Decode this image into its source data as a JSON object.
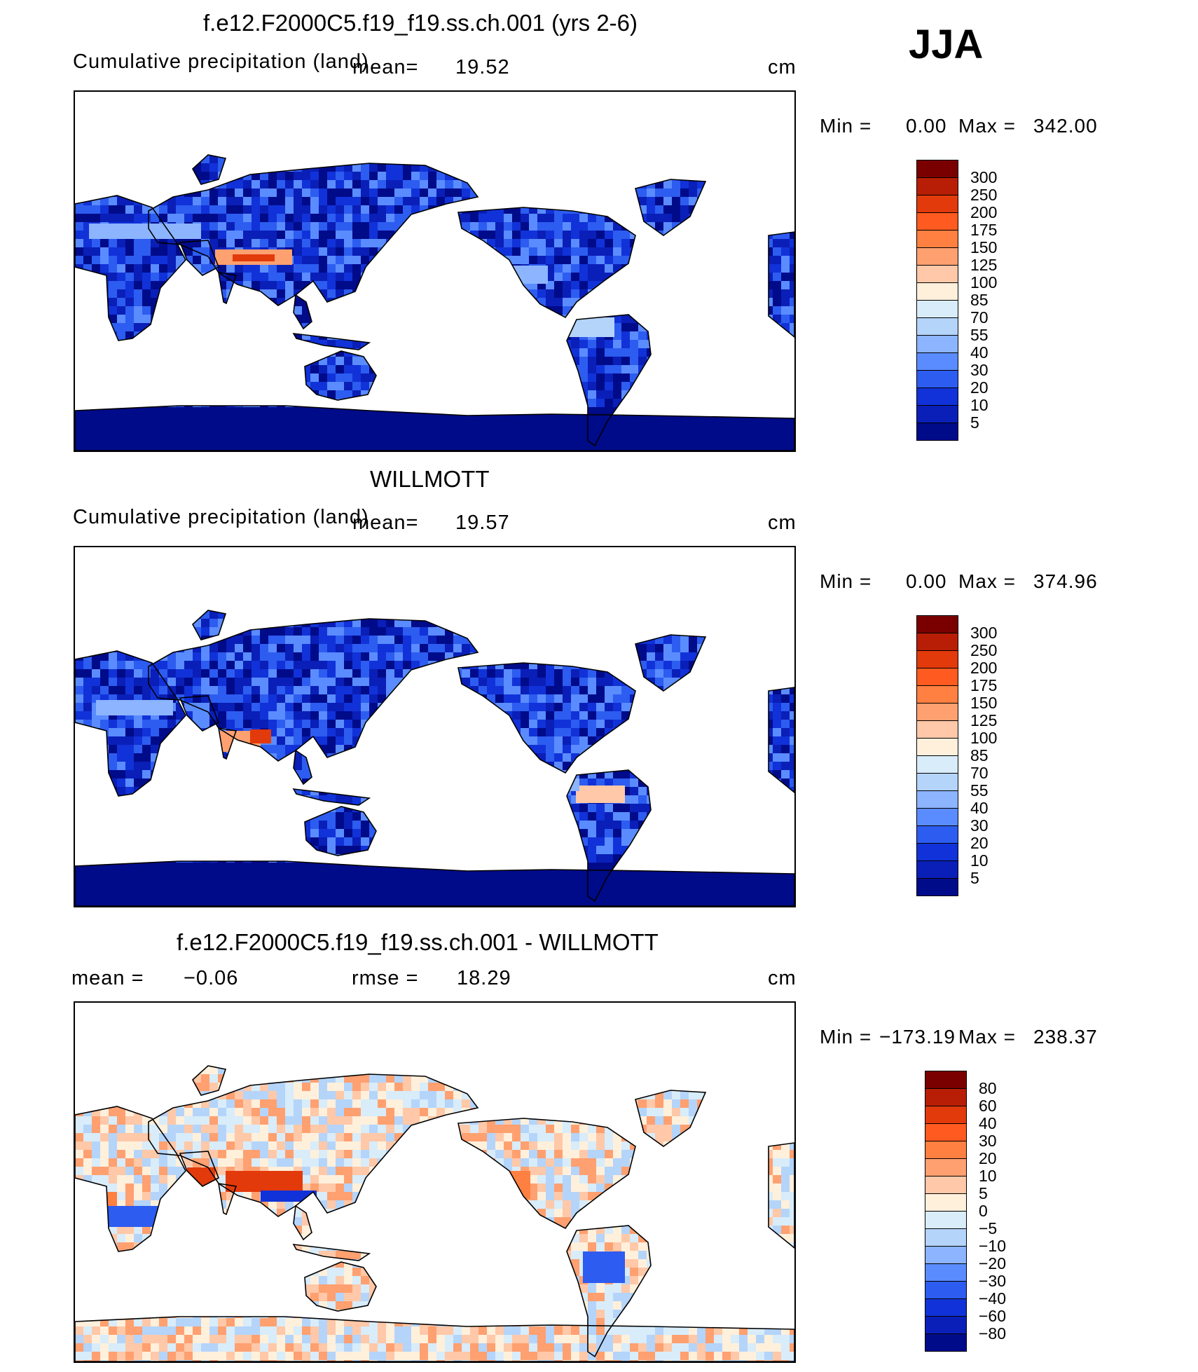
{
  "season": "JJA",
  "panels": [
    {
      "id": "model",
      "title": "f.e12.F2000C5.f19_f19.ss.ch.001 (yrs 2-6)",
      "left_text": "Cumulative precipitation (land)",
      "mean_label": "mean=",
      "mean_value": "19.52",
      "units": "cm",
      "min_label": "Min =",
      "min_value": "0.00",
      "max_label": "Max =",
      "max_value": "342.00",
      "colorbar": {
        "labels": [
          "300",
          "250",
          "200",
          "175",
          "150",
          "125",
          "100",
          "85",
          "70",
          "55",
          "40",
          "30",
          "20",
          "10",
          "5"
        ],
        "colors": [
          "#7a0000",
          "#b81e05",
          "#e33a0b",
          "#ff5a1f",
          "#ff8040",
          "#ffa070",
          "#ffc8a8",
          "#fff0dc",
          "#d8ecfa",
          "#b4d4fa",
          "#8cb4ff",
          "#5a8cff",
          "#2d5cf0",
          "#1132d8",
          "#0a1fb8",
          "#000b8a"
        ]
      }
    },
    {
      "id": "obs",
      "title": "WILLMOTT",
      "left_text": "Cumulative precipitation (land)",
      "mean_label": "mean=",
      "mean_value": "19.57",
      "units": "cm",
      "min_label": "Min =",
      "min_value": "0.00",
      "max_label": "Max =",
      "max_value": "374.96",
      "colorbar": {
        "labels": [
          "300",
          "250",
          "200",
          "175",
          "150",
          "125",
          "100",
          "85",
          "70",
          "55",
          "40",
          "30",
          "20",
          "10",
          "5"
        ],
        "colors": [
          "#7a0000",
          "#b81e05",
          "#e33a0b",
          "#ff5a1f",
          "#ff8040",
          "#ffa070",
          "#ffc8a8",
          "#fff0dc",
          "#d8ecfa",
          "#b4d4fa",
          "#8cb4ff",
          "#5a8cff",
          "#2d5cf0",
          "#1132d8",
          "#0a1fb8",
          "#000b8a"
        ]
      }
    },
    {
      "id": "diff",
      "title": "f.e12.F2000C5.f19_f19.ss.ch.001 - WILLMOTT",
      "mean_label": "mean =",
      "mean_value": "−0.06",
      "rmse_label": "rmse =",
      "rmse_value": "18.29",
      "units": "cm",
      "min_label": "Min =",
      "min_value": "−173.19",
      "max_label": "Max =",
      "max_value": "238.37",
      "colorbar": {
        "labels": [
          "80",
          "60",
          "40",
          "30",
          "20",
          "10",
          "5",
          "0",
          "−5",
          "−10",
          "−20",
          "−30",
          "−40",
          "−60",
          "−80"
        ],
        "colors": [
          "#7a0000",
          "#b81e05",
          "#e33a0b",
          "#ff5a1f",
          "#ff8040",
          "#ffa070",
          "#ffc8a8",
          "#fff0dc",
          "#d8ecfa",
          "#b4d4fa",
          "#8cb4ff",
          "#5a8cff",
          "#2d5cf0",
          "#1132d8",
          "#0a1fb8",
          "#000b8a"
        ]
      }
    }
  ]
}
